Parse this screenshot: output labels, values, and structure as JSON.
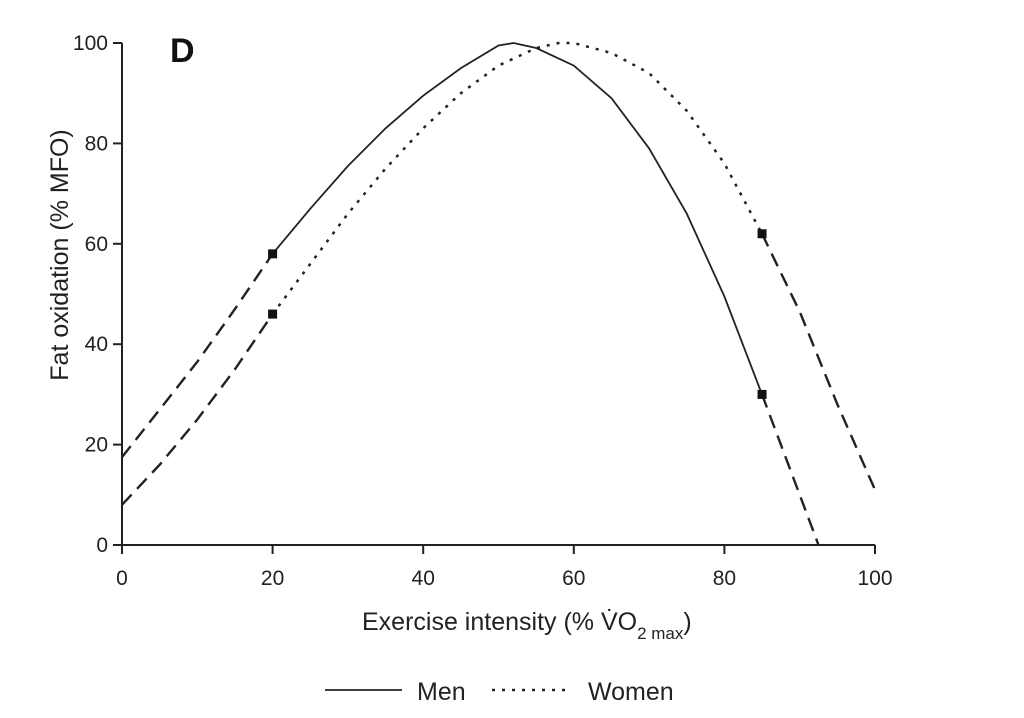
{
  "chart_data": {
    "type": "line",
    "panel_label": "D",
    "xlabel": "Exercise intensity (% V̇O",
    "xlabel_sub": "2 max",
    "xlabel_close": ")",
    "ylabel": "Fat oxidation (% MFO)",
    "xlim": [
      0,
      100
    ],
    "ylim": [
      0,
      100
    ],
    "xticks": [
      0,
      20,
      40,
      60,
      80,
      100
    ],
    "yticks": [
      0,
      20,
      40,
      60,
      80,
      100
    ],
    "grid": false,
    "legend_position": "bottom",
    "series": [
      {
        "name": "Men",
        "style": "solid",
        "color": "#222222",
        "measured_range": [
          20,
          85
        ],
        "markers": [
          [
            20,
            58
          ],
          [
            85,
            30
          ]
        ],
        "values": [
          [
            0,
            17.5
          ],
          [
            5,
            27
          ],
          [
            10,
            36.5
          ],
          [
            15,
            47
          ],
          [
            20,
            58
          ],
          [
            25,
            67
          ],
          [
            30,
            75.5
          ],
          [
            35,
            83
          ],
          [
            40,
            89.5
          ],
          [
            45,
            95
          ],
          [
            50,
            99.5
          ],
          [
            52,
            100
          ],
          [
            55,
            99
          ],
          [
            60,
            95.5
          ],
          [
            65,
            89
          ],
          [
            70,
            79
          ],
          [
            75,
            66
          ],
          [
            80,
            49.5
          ],
          [
            85,
            30
          ],
          [
            90,
            10
          ],
          [
            92.5,
            0
          ]
        ]
      },
      {
        "name": "Women",
        "style": "dotted",
        "color": "#222222",
        "measured_range": [
          20,
          85
        ],
        "markers": [
          [
            20,
            46
          ],
          [
            85,
            62
          ]
        ],
        "values": [
          [
            0,
            8
          ],
          [
            5,
            16
          ],
          [
            10,
            25
          ],
          [
            15,
            35
          ],
          [
            20,
            46
          ],
          [
            25,
            56
          ],
          [
            30,
            66
          ],
          [
            35,
            75
          ],
          [
            40,
            83
          ],
          [
            45,
            90
          ],
          [
            50,
            95.5
          ],
          [
            55,
            99
          ],
          [
            58,
            100
          ],
          [
            60,
            100
          ],
          [
            65,
            98
          ],
          [
            70,
            94
          ],
          [
            75,
            86.5
          ],
          [
            80,
            76
          ],
          [
            85,
            62
          ],
          [
            90,
            46.5
          ],
          [
            95,
            28
          ],
          [
            100,
            11
          ]
        ]
      }
    ]
  }
}
